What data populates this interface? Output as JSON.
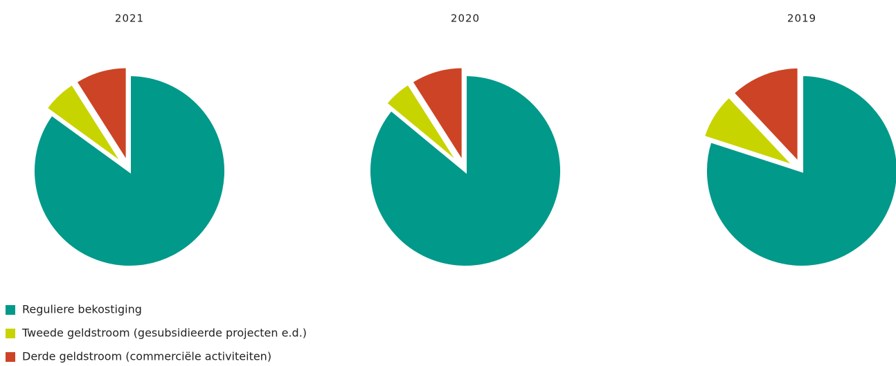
{
  "chart_data": [
    {
      "type": "pie",
      "title": "2021",
      "values": [
        85,
        6,
        9
      ]
    },
    {
      "type": "pie",
      "title": "2020",
      "values": [
        86,
        5,
        9
      ]
    },
    {
      "type": "pie",
      "title": "2019",
      "values": [
        80,
        8,
        12
      ]
    }
  ],
  "legend": {
    "labels": [
      "Reguliere bekostiging",
      "Tweede geldstroom (gesubsidieerde projecten e.d.)",
      "Derde geldstroom (commerciële activiteiten)"
    ],
    "colors": [
      "#00998a",
      "#c8d400",
      "#cc4425"
    ]
  }
}
